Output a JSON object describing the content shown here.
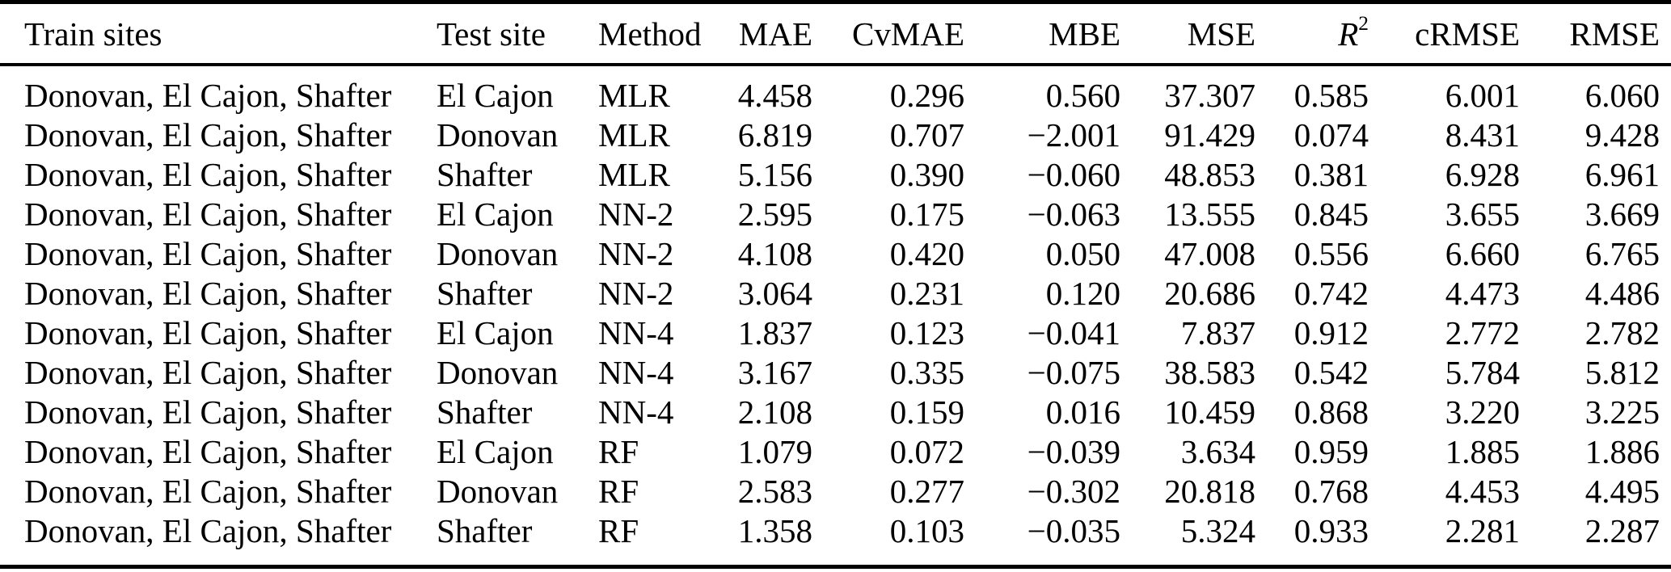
{
  "table": {
    "columns": [
      {
        "label": "Train sites",
        "align": "left"
      },
      {
        "label": "Test site",
        "align": "left"
      },
      {
        "label": "Method",
        "align": "left"
      },
      {
        "label": "MAE",
        "align": "right"
      },
      {
        "label": "CvMAE",
        "align": "right"
      },
      {
        "label": "MBE",
        "align": "right"
      },
      {
        "label": "MSE",
        "align": "right"
      },
      {
        "label": "R",
        "sup": "2",
        "italic": true,
        "align": "right"
      },
      {
        "label": "cRMSE",
        "align": "right"
      },
      {
        "label": "RMSE",
        "align": "right"
      }
    ],
    "rows": [
      [
        "Donovan, El Cajon, Shafter",
        "El Cajon",
        "MLR",
        "4.458",
        "0.296",
        "0.560",
        "37.307",
        "0.585",
        "6.001",
        "6.060"
      ],
      [
        "Donovan, El Cajon, Shafter",
        "Donovan",
        "MLR",
        "6.819",
        "0.707",
        "−2.001",
        "91.429",
        "0.074",
        "8.431",
        "9.428"
      ],
      [
        "Donovan, El Cajon, Shafter",
        "Shafter",
        "MLR",
        "5.156",
        "0.390",
        "−0.060",
        "48.853",
        "0.381",
        "6.928",
        "6.961"
      ],
      [
        "Donovan, El Cajon, Shafter",
        "El Cajon",
        "NN-2",
        "2.595",
        "0.175",
        "−0.063",
        "13.555",
        "0.845",
        "3.655",
        "3.669"
      ],
      [
        "Donovan, El Cajon, Shafter",
        "Donovan",
        "NN-2",
        "4.108",
        "0.420",
        "0.050",
        "47.008",
        "0.556",
        "6.660",
        "6.765"
      ],
      [
        "Donovan, El Cajon, Shafter",
        "Shafter",
        "NN-2",
        "3.064",
        "0.231",
        "0.120",
        "20.686",
        "0.742",
        "4.473",
        "4.486"
      ],
      [
        "Donovan, El Cajon, Shafter",
        "El Cajon",
        "NN-4",
        "1.837",
        "0.123",
        "−0.041",
        "7.837",
        "0.912",
        "2.772",
        "2.782"
      ],
      [
        "Donovan, El Cajon, Shafter",
        "Donovan",
        "NN-4",
        "3.167",
        "0.335",
        "−0.075",
        "38.583",
        "0.542",
        "5.784",
        "5.812"
      ],
      [
        "Donovan, El Cajon, Shafter",
        "Shafter",
        "NN-4",
        "2.108",
        "0.159",
        "0.016",
        "10.459",
        "0.868",
        "3.220",
        "3.225"
      ],
      [
        "Donovan, El Cajon, Shafter",
        "El Cajon",
        "RF",
        "1.079",
        "0.072",
        "−0.039",
        "3.634",
        "0.959",
        "1.885",
        "1.886"
      ],
      [
        "Donovan, El Cajon, Shafter",
        "Donovan",
        "RF",
        "2.583",
        "0.277",
        "−0.302",
        "20.818",
        "0.768",
        "4.453",
        "4.495"
      ],
      [
        "Donovan, El Cajon, Shafter",
        "Shafter",
        "RF",
        "1.358",
        "0.103",
        "−0.035",
        "5.324",
        "0.933",
        "2.281",
        "2.287"
      ]
    ]
  },
  "colors": {
    "text": "#000000",
    "background": "#ffffff",
    "rule": "#000000"
  }
}
